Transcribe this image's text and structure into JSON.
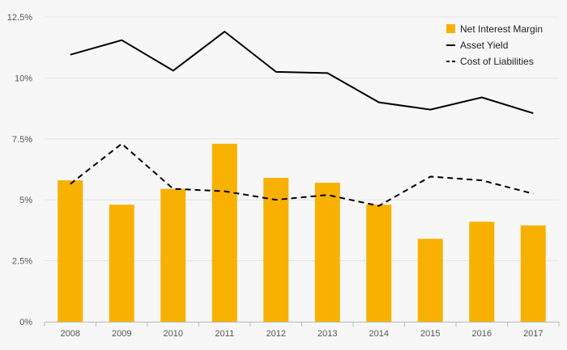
{
  "chart_data": {
    "type": "bar",
    "title": "",
    "xlabel": "",
    "ylabel": "",
    "categories": [
      "2008",
      "2009",
      "2010",
      "2011",
      "2012",
      "2013",
      "2014",
      "2015",
      "2016",
      "2017"
    ],
    "ylim": [
      0,
      12.5
    ],
    "yticks": [
      {
        "value": 0,
        "label": "0%"
      },
      {
        "value": 2.5,
        "label": "2.5%"
      },
      {
        "value": 5,
        "label": "5%"
      },
      {
        "value": 7.5,
        "label": "7.5%"
      },
      {
        "value": 10,
        "label": "10%"
      },
      {
        "value": 12.5,
        "label": "12.5%"
      }
    ],
    "grid": true,
    "legend_position": "top-right",
    "series": [
      {
        "name": "Net Interest Margin",
        "kind": "bar",
        "style": "fill",
        "color": "#f8b100",
        "values": [
          5.8,
          4.8,
          5.45,
          7.3,
          5.9,
          5.7,
          4.8,
          3.4,
          4.1,
          3.95
        ]
      },
      {
        "name": "Asset Yield",
        "kind": "line",
        "style": "solid",
        "color": "#000000",
        "values": [
          10.95,
          11.55,
          10.3,
          11.9,
          10.25,
          10.2,
          9.0,
          8.7,
          9.2,
          8.55
        ]
      },
      {
        "name": "Cost of Liabilities",
        "kind": "line",
        "style": "dashed",
        "color": "#000000",
        "values": [
          5.65,
          7.3,
          5.45,
          5.35,
          5.0,
          5.2,
          4.75,
          5.95,
          5.8,
          5.25
        ]
      }
    ]
  }
}
